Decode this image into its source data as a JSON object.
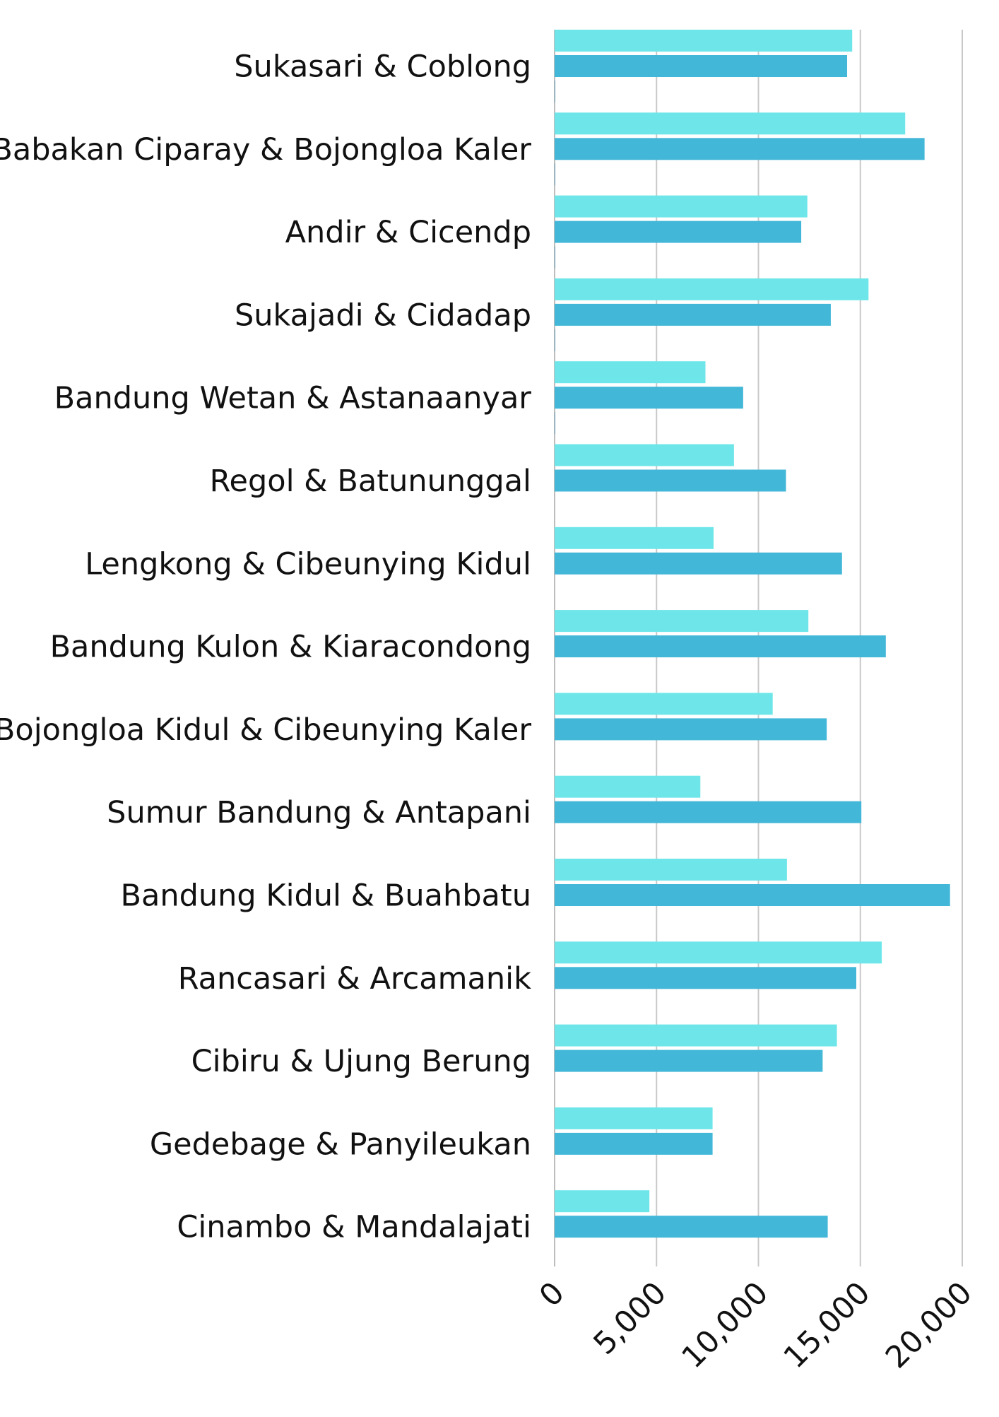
{
  "chart_data": {
    "type": "bar",
    "orientation": "horizontal",
    "categories": [
      "Sukasari & Coblong",
      "Babakan Ciparay & Bojongloa Kaler",
      "Andir & Cicendp",
      "Sukajadi & Cidadap",
      "Bandung Wetan & Astanaanyar",
      "Regol & Batununggal",
      "Lengkong & Cibeunying Kidul",
      "Bandung Kulon & Kiaracondong",
      "Bojongloa Kidul & Cibeunying Kaler",
      "Sumur Bandung & Antapani",
      "Bandung Kidul & Buahbatu",
      "Rancasari & Arcamanik",
      "Cibiru & Ujung Berung",
      "Gedebage & Panyileukan",
      "Cinambo & Mandalajati"
    ],
    "series": [
      {
        "color": "#6ee6e9",
        "values": [
          14600,
          17200,
          12400,
          15400,
          7400,
          8800,
          7800,
          12450,
          10700,
          7150,
          11400,
          16050,
          13850,
          7750,
          4650
        ]
      },
      {
        "color": "#42b7d8",
        "values": [
          14350,
          18150,
          12100,
          13550,
          9250,
          11350,
          14100,
          16250,
          13350,
          15050,
          19400,
          14800,
          13150,
          7750,
          13400
        ]
      },
      {
        "color": "#2a8fb8",
        "values": [
          20,
          20,
          20,
          20,
          20,
          0,
          0,
          0,
          0,
          0,
          0,
          0,
          0,
          0,
          0
        ]
      }
    ],
    "x_ticks": [
      "0",
      "5,000",
      "10,000",
      "15,000",
      "20,000"
    ],
    "xlim": [
      0,
      20000
    ],
    "grid": true,
    "legend": "none",
    "title": "",
    "xlabel": "",
    "ylabel": ""
  }
}
